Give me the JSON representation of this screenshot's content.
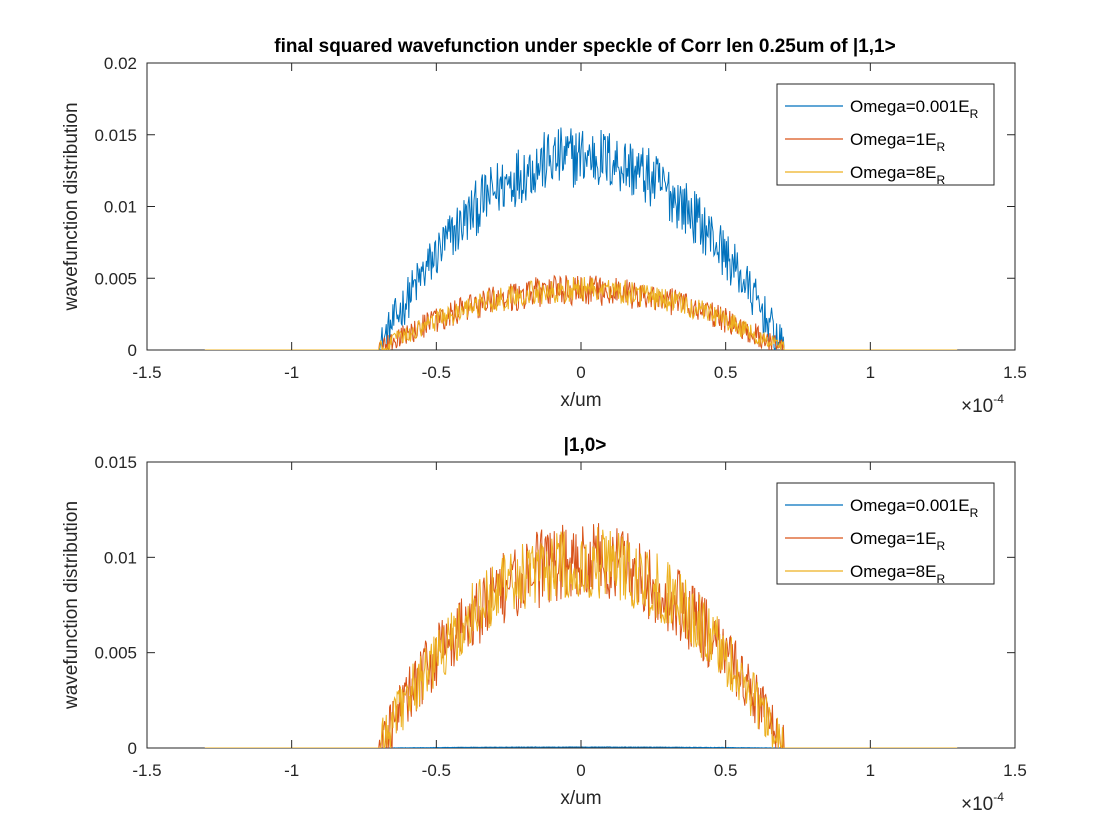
{
  "chart_data": [
    {
      "type": "line",
      "title": "final squared wavefunction under speckle of Corr len 0.25um of |1,1>",
      "xlabel": "x/um",
      "ylabel": "wavefunction distribution",
      "x_exponent_label": "×10",
      "x_exponent_power": "-4",
      "xlim": [
        -1.5,
        1.5
      ],
      "ylim": [
        0,
        0.02
      ],
      "xticks": [
        -1.5,
        -1,
        -0.5,
        0,
        0.5,
        1,
        1.5
      ],
      "xtick_labels": [
        "-1.5",
        "-1",
        "-0.5",
        "0",
        "0.5",
        "1",
        "1.5"
      ],
      "yticks": [
        0,
        0.005,
        0.01,
        0.015,
        0.02
      ],
      "ytick_labels": [
        "0",
        "0.005",
        "0.01",
        "0.015",
        "0.02"
      ],
      "x_range": [
        -1.3,
        1.3
      ],
      "support_edge": 0.7,
      "legend_position": "top-right",
      "grid": false,
      "series": [
        {
          "name": "Omega=0.001E",
          "sub": "R",
          "color": "#0072BD",
          "peak": 0.0135,
          "noise": 0.0022
        },
        {
          "name": "Omega=1E",
          "sub": "R",
          "color": "#D95319",
          "peak": 0.0042,
          "noise": 0.0011
        },
        {
          "name": "Omega=8E",
          "sub": "R",
          "color": "#EDB120",
          "peak": 0.0042,
          "noise": 0.0009
        }
      ]
    },
    {
      "type": "line",
      "title": "|1,0>",
      "xlabel": "x/um",
      "ylabel": "wavefunction distribution",
      "x_exponent_label": "×10",
      "x_exponent_power": "-4",
      "xlim": [
        -1.5,
        1.5
      ],
      "ylim": [
        0,
        0.015
      ],
      "xticks": [
        -1.5,
        -1,
        -0.5,
        0,
        0.5,
        1,
        1.5
      ],
      "xtick_labels": [
        "-1.5",
        "-1",
        "-0.5",
        "0",
        "0.5",
        "1",
        "1.5"
      ],
      "yticks": [
        0,
        0.005,
        0.01,
        0.015
      ],
      "ytick_labels": [
        "0",
        "0.005",
        "0.01",
        "0.015"
      ],
      "x_range": [
        -1.3,
        1.3
      ],
      "support_edge": 0.7,
      "legend_position": "top-right",
      "grid": false,
      "series": [
        {
          "name": "Omega=0.001E",
          "sub": "R",
          "color": "#0072BD",
          "peak": 5e-05,
          "noise": 1e-05
        },
        {
          "name": "Omega=1E",
          "sub": "R",
          "color": "#D95319",
          "peak": 0.0098,
          "noise": 0.0021
        },
        {
          "name": "Omega=8E",
          "sub": "R",
          "color": "#EDB120",
          "peak": 0.0098,
          "noise": 0.0019
        }
      ]
    }
  ]
}
